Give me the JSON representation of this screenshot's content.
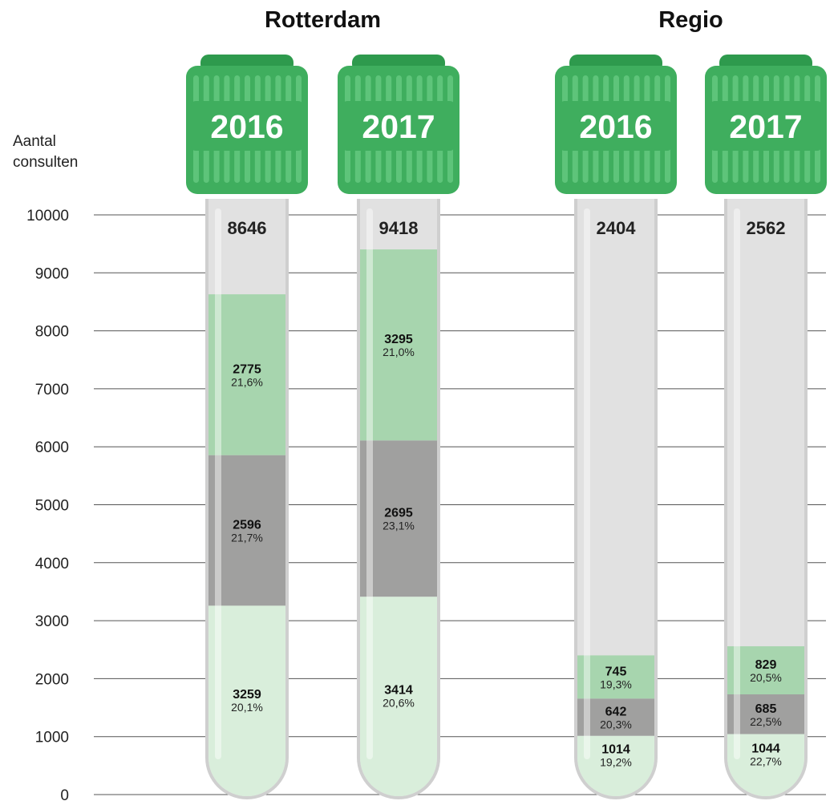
{
  "colors": {
    "cap": "#3fae5e",
    "cap_dark": "#2e9a4d",
    "cap_rib": "#5ec47a",
    "tube": "#e1e1e1",
    "tube_edge": "#cfcfcf",
    "seg_top": "#a7d5ae",
    "seg_mid": "#a0a09f",
    "seg_bottom": "#d9eedb",
    "gridline": "#555555"
  },
  "chart_data": {
    "type": "bar",
    "stacked": true,
    "ylabel": [
      "Aantal",
      "consulten"
    ],
    "ylim": [
      0,
      10000
    ],
    "yticks": [
      0,
      1000,
      2000,
      3000,
      4000,
      5000,
      6000,
      7000,
      8000,
      9000,
      10000
    ],
    "groups": [
      {
        "name": "Rotterdam",
        "tubes": [
          0,
          1
        ]
      },
      {
        "name": "Regio",
        "tubes": [
          2,
          3
        ]
      }
    ],
    "tubes": [
      {
        "year": "2016",
        "total": 8646,
        "segments": [
          {
            "value": 3259,
            "pct": "20,1%"
          },
          {
            "value": 2596,
            "pct": "21,7%"
          },
          {
            "value": 2775,
            "pct": "21,6%"
          }
        ]
      },
      {
        "year": "2017",
        "total": 9418,
        "segments": [
          {
            "value": 3414,
            "pct": "20,6%"
          },
          {
            "value": 2695,
            "pct": "23,1%"
          },
          {
            "value": 3295,
            "pct": "21,0%"
          }
        ]
      },
      {
        "year": "2016",
        "total": 2404,
        "segments": [
          {
            "value": 1014,
            "pct": "19,2%"
          },
          {
            "value": 642,
            "pct": "20,3%"
          },
          {
            "value": 745,
            "pct": "19,3%"
          }
        ]
      },
      {
        "year": "2017",
        "total": 2562,
        "segments": [
          {
            "value": 1044,
            "pct": "22,7%"
          },
          {
            "value": 685,
            "pct": "22,5%"
          },
          {
            "value": 829,
            "pct": "20,5%"
          }
        ]
      }
    ]
  }
}
